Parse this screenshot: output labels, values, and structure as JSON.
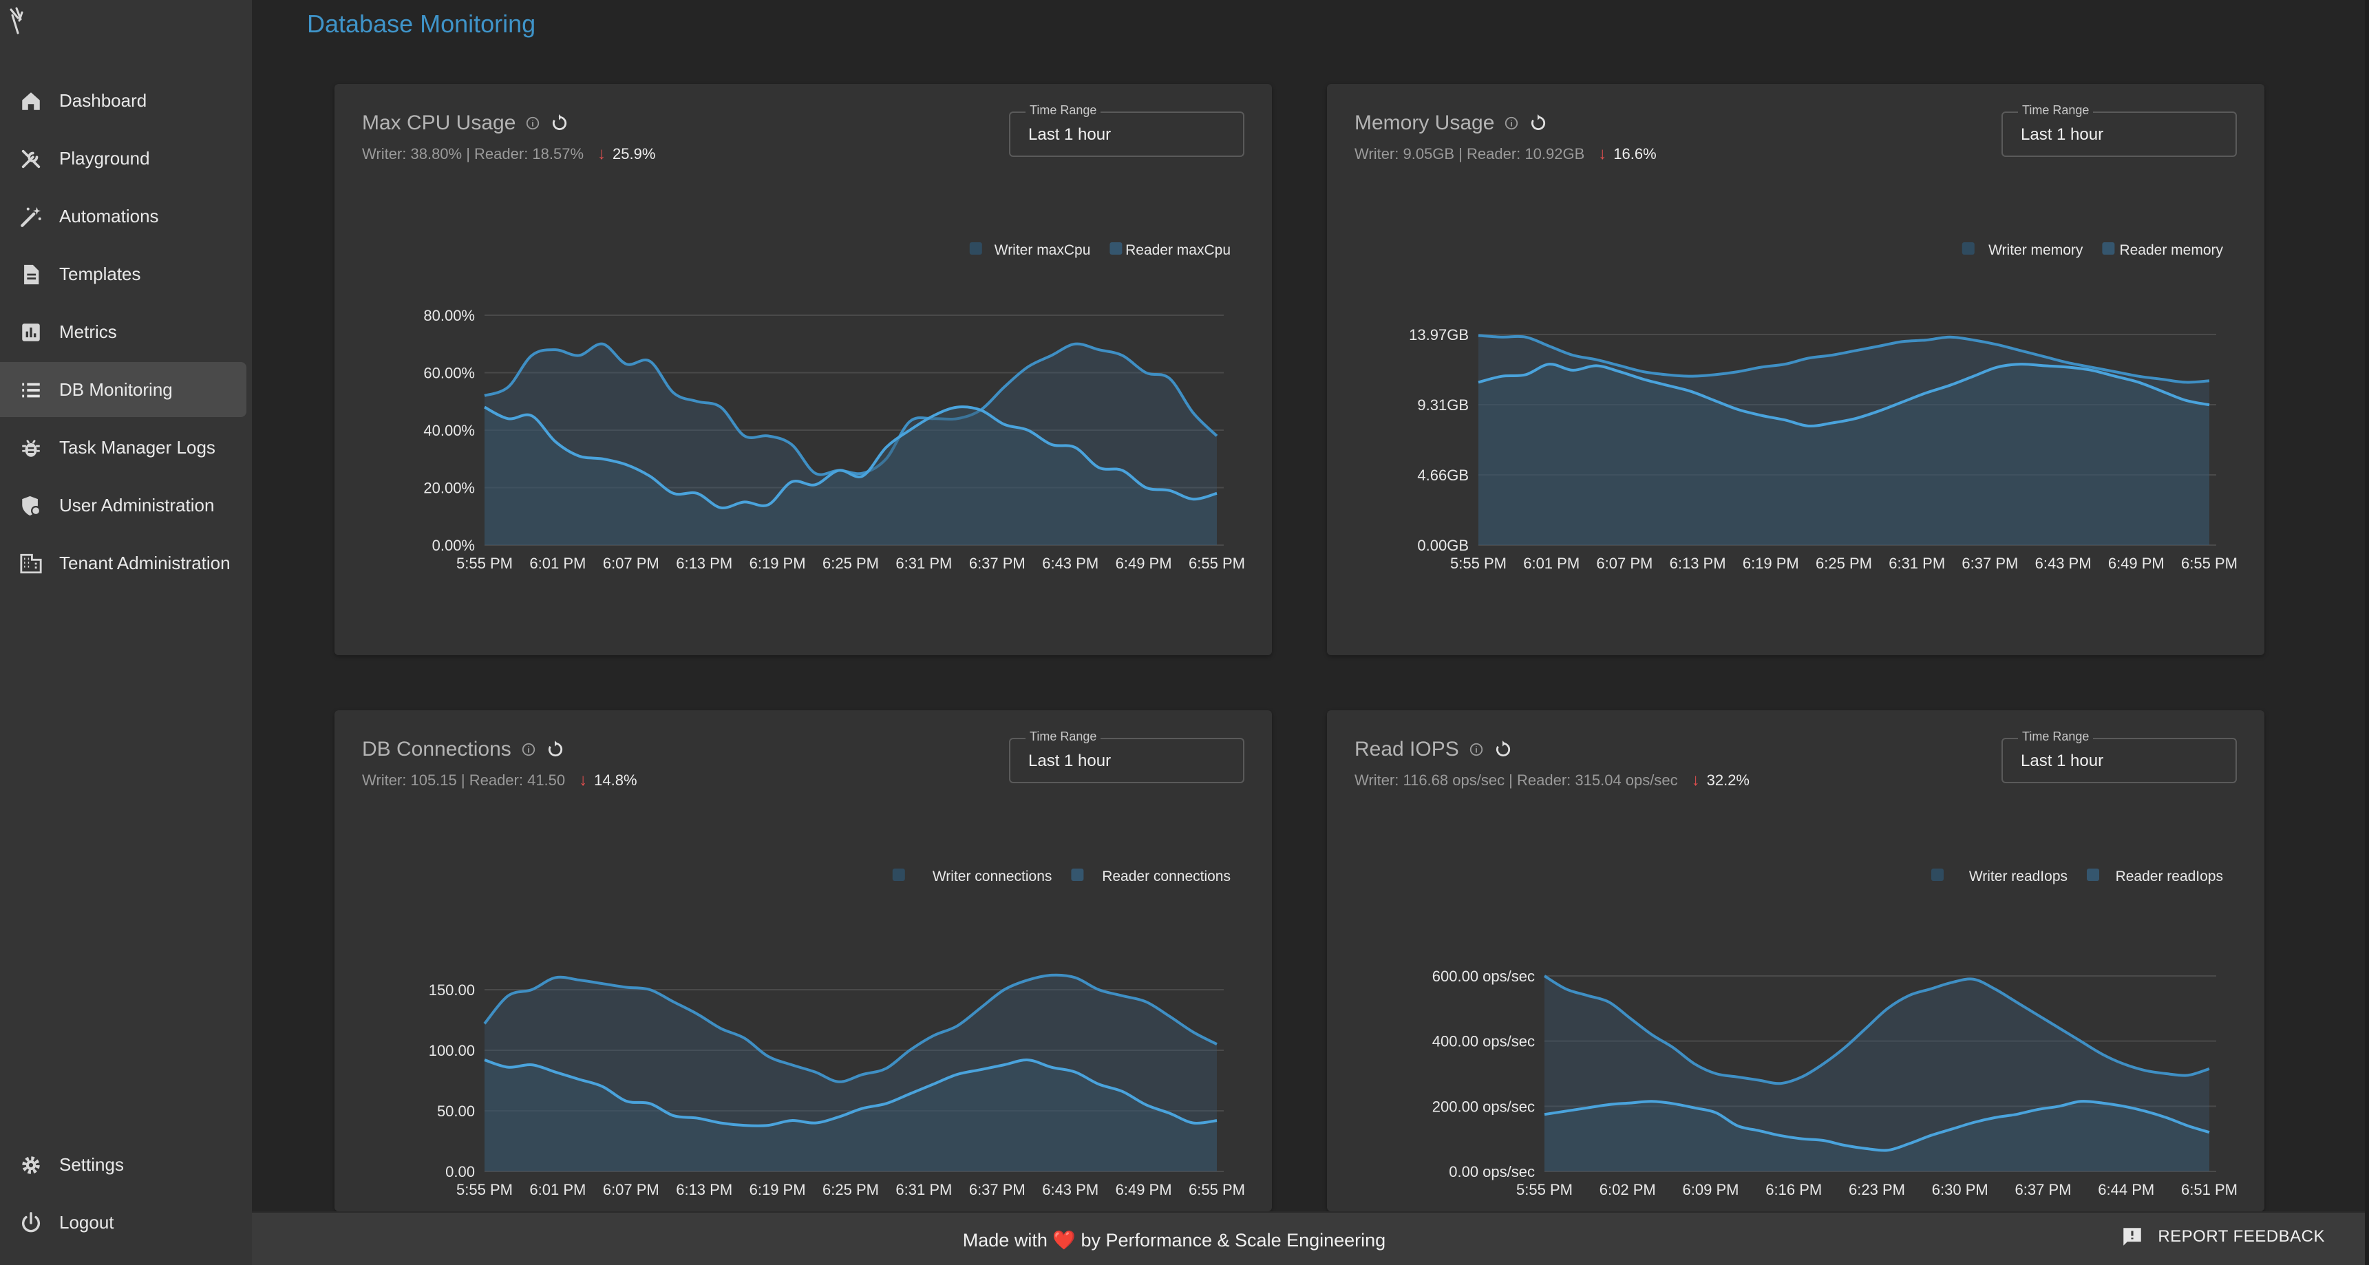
{
  "header": {
    "title": "Database Monitoring"
  },
  "sidebar": {
    "items": [
      {
        "label": "Dashboard",
        "icon": "home-icon"
      },
      {
        "label": "Playground",
        "icon": "tools-icon"
      },
      {
        "label": "Automations",
        "icon": "magic-wand-icon"
      },
      {
        "label": "Templates",
        "icon": "document-icon"
      },
      {
        "label": "Metrics",
        "icon": "bar-chart-icon"
      },
      {
        "label": "DB Monitoring",
        "icon": "list-icon",
        "active": true
      },
      {
        "label": "Task Manager Logs",
        "icon": "bug-icon"
      },
      {
        "label": "User Administration",
        "icon": "user-shield-icon"
      },
      {
        "label": "Tenant Administration",
        "icon": "building-icon"
      }
    ],
    "bottom": [
      {
        "label": "Settings",
        "icon": "gear-icon"
      },
      {
        "label": "Logout",
        "icon": "power-icon"
      }
    ]
  },
  "footer": {
    "text": "Made with ❤️ by Performance & Scale Engineering",
    "feedback_label": "REPORT FEEDBACK"
  },
  "colors": {
    "accent": "#3f94c9",
    "line": "#4a9fd8",
    "trend_down": "#e24f4f"
  },
  "cards": [
    {
      "title": "Max CPU Usage",
      "subtitle": "Writer: 38.80% | Reader: 18.57%",
      "trend": "25.9%",
      "range_label": "Time Range",
      "range_value": "Last 1 hour"
    },
    {
      "title": "Memory Usage",
      "subtitle": "Writer: 9.05GB | Reader: 10.92GB",
      "trend": "16.6%",
      "range_label": "Time Range",
      "range_value": "Last 1 hour"
    },
    {
      "title": "DB Connections",
      "subtitle": "Writer: 105.15 | Reader: 41.50",
      "trend": "14.8%",
      "range_label": "Time Range",
      "range_value": "Last 1 hour"
    },
    {
      "title": "Read IOPS",
      "subtitle": "Writer: 116.68 ops/sec | Reader: 315.04 ops/sec",
      "trend": "32.2%",
      "range_label": "Time Range",
      "range_value": "Last 1 hour"
    }
  ],
  "chart_data": [
    {
      "type": "area",
      "series": [
        {
          "name": "Writer maxCpu",
          "values": [
            52,
            55,
            66,
            68,
            66,
            70,
            63,
            64,
            53,
            50,
            48,
            38,
            38,
            35,
            25,
            26,
            25,
            30,
            43,
            44,
            44,
            47,
            55,
            62,
            66,
            70,
            68,
            66,
            60,
            58,
            46,
            38
          ]
        },
        {
          "name": "Reader maxCpu",
          "values": [
            48,
            44,
            45,
            36,
            31,
            30,
            28,
            24,
            18,
            18,
            13,
            15,
            14,
            22,
            21,
            26,
            24,
            34,
            40,
            45,
            48,
            47,
            42,
            40,
            35,
            34,
            27,
            26,
            20,
            19,
            16,
            18
          ]
        }
      ],
      "xticks": [
        "5:55 PM",
        "6:01 PM",
        "6:07 PM",
        "6:13 PM",
        "6:19 PM",
        "6:25 PM",
        "6:31 PM",
        "6:37 PM",
        "6:43 PM",
        "6:49 PM",
        "6:55 PM"
      ],
      "yticks": [
        "0.00%",
        "20.00%",
        "40.00%",
        "60.00%",
        "80.00%"
      ],
      "ylim": [
        0,
        80
      ]
    },
    {
      "type": "area",
      "series": [
        {
          "name": "Writer memory",
          "values": [
            13.9,
            13.8,
            13.8,
            13.2,
            12.6,
            12.3,
            11.9,
            11.5,
            11.3,
            11.2,
            11.3,
            11.5,
            11.8,
            12.0,
            12.4,
            12.6,
            12.9,
            13.2,
            13.5,
            13.6,
            13.8,
            13.6,
            13.3,
            12.9,
            12.5,
            12.1,
            11.8,
            11.5,
            11.2,
            11.0,
            10.8,
            10.9
          ]
        },
        {
          "name": "Reader memory",
          "values": [
            10.8,
            11.2,
            11.3,
            12.0,
            11.6,
            11.9,
            11.5,
            11.0,
            10.6,
            10.2,
            9.6,
            9.0,
            8.6,
            8.3,
            7.9,
            8.1,
            8.4,
            8.9,
            9.5,
            10.1,
            10.6,
            11.2,
            11.8,
            12.0,
            11.9,
            11.8,
            11.6,
            11.2,
            10.8,
            10.2,
            9.6,
            9.3
          ]
        }
      ],
      "xticks": [
        "5:55 PM",
        "6:01 PM",
        "6:07 PM",
        "6:13 PM",
        "6:19 PM",
        "6:25 PM",
        "6:31 PM",
        "6:37 PM",
        "6:43 PM",
        "6:49 PM",
        "6:55 PM"
      ],
      "yticks": [
        "0.00GB",
        "4.66GB",
        "9.31GB",
        "13.97GB"
      ],
      "ylim": [
        0,
        13.97
      ]
    },
    {
      "type": "area",
      "series": [
        {
          "name": "Writer connections",
          "values": [
            122,
            145,
            150,
            160,
            158,
            155,
            152,
            150,
            140,
            130,
            118,
            110,
            95,
            88,
            82,
            74,
            80,
            85,
            100,
            112,
            120,
            135,
            150,
            158,
            162,
            160,
            150,
            145,
            140,
            128,
            115,
            105
          ]
        },
        {
          "name": "Reader connections",
          "values": [
            92,
            86,
            88,
            82,
            76,
            70,
            58,
            56,
            46,
            44,
            40,
            38,
            38,
            42,
            40,
            45,
            52,
            56,
            64,
            72,
            80,
            84,
            88,
            92,
            86,
            82,
            72,
            66,
            55,
            48,
            40,
            42
          ]
        }
      ],
      "xticks": [
        "5:55 PM",
        "6:01 PM",
        "6:07 PM",
        "6:13 PM",
        "6:19 PM",
        "6:25 PM",
        "6:31 PM",
        "6:37 PM",
        "6:43 PM",
        "6:49 PM",
        "6:55 PM"
      ],
      "yticks": [
        "0.00",
        "50.00",
        "100.00",
        "150.00"
      ],
      "ylim": [
        0,
        180
      ]
    },
    {
      "type": "area",
      "series": [
        {
          "name": "Writer readIops",
          "values": [
            600,
            560,
            540,
            520,
            470,
            420,
            380,
            330,
            300,
            290,
            280,
            270,
            290,
            330,
            380,
            440,
            500,
            540,
            560,
            580,
            590,
            560,
            520,
            480,
            440,
            400,
            360,
            330,
            310,
            300,
            295,
            315
          ]
        },
        {
          "name": "Reader readIops",
          "values": [
            175,
            185,
            195,
            205,
            210,
            215,
            208,
            195,
            180,
            140,
            125,
            110,
            100,
            95,
            80,
            70,
            65,
            85,
            110,
            130,
            150,
            165,
            175,
            190,
            200,
            215,
            210,
            200,
            185,
            165,
            140,
            120
          ]
        }
      ],
      "xticks": [
        "5:55 PM",
        "6:02 PM",
        "6:09 PM",
        "6:16 PM",
        "6:23 PM",
        "6:30 PM",
        "6:37 PM",
        "6:44 PM",
        "6:51 PM"
      ],
      "yticks": [
        "0.00 ops/sec",
        "200.00 ops/sec",
        "400.00 ops/sec",
        "600.00 ops/sec"
      ],
      "ylim": [
        0,
        600
      ]
    }
  ]
}
